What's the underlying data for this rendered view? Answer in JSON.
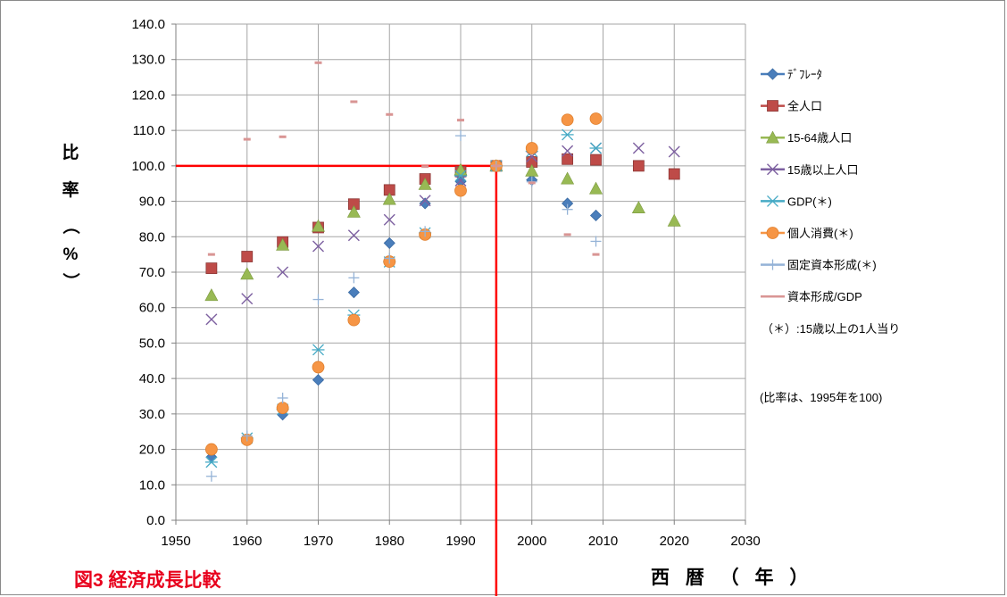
{
  "chart_data": {
    "type": "scatter",
    "figure_title": "図3 経済成長比較",
    "xlabel": "西 暦 （ 年 ）",
    "ylabel": "比率（%）",
    "xlim": [
      1950,
      2030
    ],
    "ylim": [
      0,
      140
    ],
    "grid": true,
    "legend_position": "right",
    "x_ticks": [
      "1950",
      "1960",
      "1970",
      "1980",
      "1990",
      "2000",
      "2010",
      "2020",
      "2030"
    ],
    "y_ticks": [
      "0.0",
      "10.0",
      "20.0",
      "30.0",
      "40.0",
      "50.0",
      "60.0",
      "70.0",
      "80.0",
      "90.0",
      "100.0",
      "110.0",
      "120.0",
      "130.0",
      "140.0"
    ],
    "reference_lines": {
      "x": 1995,
      "y": 100,
      "color": "#ff0000"
    },
    "notes": [
      "（＊）:15歳以上の1人当り",
      "(比率は、1995年を100)"
    ],
    "series": [
      {
        "name": "ﾃﾞﾌﾚｰﾀ",
        "marker": "diamond",
        "color": "#4a7ebb",
        "points": [
          [
            1955,
            17.8
          ],
          [
            1960,
            22.8
          ],
          [
            1965,
            29.8
          ],
          [
            1970,
            39.6
          ],
          [
            1975,
            64.3
          ],
          [
            1980,
            78.2
          ],
          [
            1985,
            89.4
          ],
          [
            1990,
            95.6
          ],
          [
            1995,
            100
          ],
          [
            2000,
            96
          ],
          [
            2005,
            89.4
          ],
          [
            2009,
            86
          ]
        ]
      },
      {
        "name": "全人口",
        "marker": "square",
        "color": "#be4b48",
        "points": [
          [
            1955,
            71.1
          ],
          [
            1960,
            74.4
          ],
          [
            1965,
            78.5
          ],
          [
            1970,
            82.6
          ],
          [
            1975,
            89.2
          ],
          [
            1980,
            93.2
          ],
          [
            1985,
            96.3
          ],
          [
            1990,
            98.4
          ],
          [
            1995,
            100
          ],
          [
            2000,
            101.1
          ],
          [
            2005,
            101.9
          ],
          [
            2009,
            101.7
          ],
          [
            2015,
            100
          ],
          [
            2020,
            97.7
          ]
        ]
      },
      {
        "name": "15-64歳人口",
        "marker": "triangle",
        "color": "#98b954",
        "points": [
          [
            1955,
            63.5
          ],
          [
            1960,
            69.5
          ],
          [
            1965,
            77.7
          ],
          [
            1970,
            83
          ],
          [
            1975,
            87
          ],
          [
            1980,
            90.6
          ],
          [
            1985,
            94.8
          ],
          [
            1990,
            98.9
          ],
          [
            1995,
            100
          ],
          [
            2000,
            98.6
          ],
          [
            2005,
            96.4
          ],
          [
            2009,
            93.6
          ],
          [
            2015,
            88.2
          ],
          [
            2020,
            84.5
          ]
        ]
      },
      {
        "name": "15歳以上人口",
        "marker": "x",
        "color": "#7d60a0",
        "points": [
          [
            1955,
            56.7
          ],
          [
            1960,
            62.5
          ],
          [
            1965,
            70
          ],
          [
            1970,
            77.3
          ],
          [
            1975,
            80.4
          ],
          [
            1980,
            84.8
          ],
          [
            1985,
            90.2
          ],
          [
            1990,
            95.8
          ],
          [
            1995,
            100
          ],
          [
            2000,
            102.6
          ],
          [
            2005,
            104.2
          ],
          [
            2009,
            105
          ],
          [
            2015,
            105
          ],
          [
            2020,
            104
          ]
        ]
      },
      {
        "name": "GDP(＊)",
        "marker": "asterisk",
        "color": "#46aac5",
        "points": [
          [
            1955,
            16.4
          ],
          [
            1960,
            23.2
          ],
          [
            1965,
            31.3
          ],
          [
            1970,
            48.1
          ],
          [
            1975,
            57.9
          ],
          [
            1980,
            72.9
          ],
          [
            1985,
            81.1
          ],
          [
            1990,
            97.2
          ],
          [
            1995,
            100
          ],
          [
            2000,
            104.1
          ],
          [
            2005,
            108.8
          ],
          [
            2009,
            105
          ]
        ]
      },
      {
        "name": "個人消費(＊)",
        "marker": "circle",
        "color": "#f69545",
        "points": [
          [
            1955,
            20
          ],
          [
            1960,
            22.7
          ],
          [
            1965,
            31.7
          ],
          [
            1970,
            43.2
          ],
          [
            1975,
            56.5
          ],
          [
            1980,
            73
          ],
          [
            1985,
            80.6
          ],
          [
            1990,
            93
          ],
          [
            1995,
            100
          ],
          [
            2000,
            105
          ],
          [
            2005,
            113
          ],
          [
            2009,
            113.3
          ]
        ]
      },
      {
        "name": "固定資本形成(＊)",
        "marker": "plus",
        "color": "#95b3d7",
        "points": [
          [
            1955,
            12.4
          ],
          [
            1960,
            23.8
          ],
          [
            1965,
            34.5
          ],
          [
            1970,
            62.3
          ],
          [
            1975,
            68.4
          ],
          [
            1980,
            73.9
          ],
          [
            1985,
            81.5
          ],
          [
            1990,
            108.5
          ],
          [
            1995,
            100
          ],
          [
            2000,
            95.5
          ],
          [
            2005,
            87.7
          ],
          [
            2009,
            78.7
          ]
        ]
      },
      {
        "name": "資本形成/GDP",
        "marker": "dash",
        "color": "#d99594",
        "points": [
          [
            1955,
            75
          ],
          [
            1960,
            107.5
          ],
          [
            1965,
            108.2
          ],
          [
            1970,
            129.1
          ],
          [
            1975,
            118.1
          ],
          [
            1980,
            114.5
          ],
          [
            1985,
            99.8
          ],
          [
            1990,
            112.9
          ],
          [
            1995,
            100
          ],
          [
            2000,
            95.2
          ],
          [
            2005,
            80.6
          ],
          [
            2009,
            75
          ]
        ]
      }
    ]
  }
}
